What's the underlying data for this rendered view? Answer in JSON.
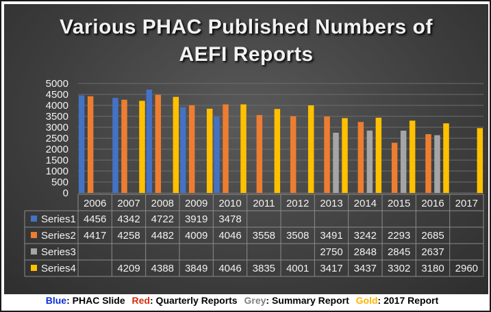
{
  "title_line1": "Various PHAC Published Numbers of",
  "title_line2": "AEFI Reports",
  "chart_data": {
    "type": "bar",
    "title": "Various PHAC Published Numbers of AEFI Reports",
    "categories": [
      "2006",
      "2007",
      "2008",
      "2009",
      "2010",
      "2011",
      "2012",
      "2013",
      "2014",
      "2015",
      "2016",
      "2017"
    ],
    "ylim": [
      0,
      5000
    ],
    "yticks": [
      0,
      500,
      1000,
      1500,
      2000,
      2500,
      3000,
      3500,
      4000,
      4500,
      5000
    ],
    "grid": true,
    "series": [
      {
        "name": "Series1",
        "color": "#4472c4",
        "values": [
          4456,
          4342,
          4722,
          3919,
          3478,
          null,
          null,
          null,
          null,
          null,
          null,
          null
        ]
      },
      {
        "name": "Series2",
        "color": "#ed7d31",
        "values": [
          4417,
          4258,
          4482,
          4009,
          4046,
          3558,
          3508,
          3491,
          3242,
          2293,
          2685,
          null
        ]
      },
      {
        "name": "Series3",
        "color": "#a5a5a5",
        "values": [
          null,
          null,
          null,
          null,
          null,
          null,
          null,
          2750,
          2848,
          2845,
          2637,
          null
        ]
      },
      {
        "name": "Series4",
        "color": "#ffc000",
        "values": [
          null,
          4209,
          4388,
          3849,
          4046,
          3835,
          4001,
          3417,
          3437,
          3302,
          3180,
          2960
        ]
      }
    ]
  },
  "caption": [
    {
      "key": "Blue",
      "key_color": "#0b2fd6",
      "text": ": PHAC Slide"
    },
    {
      "key": "Red",
      "key_color": "#d62b0b",
      "text": ": Quarterly Reports"
    },
    {
      "key": "Grey",
      "key_color": "#7f7f7f",
      "text": ": Summary Report"
    },
    {
      "key": "Gold",
      "key_color": "#ffb400",
      "text": ": 2017 Report"
    }
  ]
}
